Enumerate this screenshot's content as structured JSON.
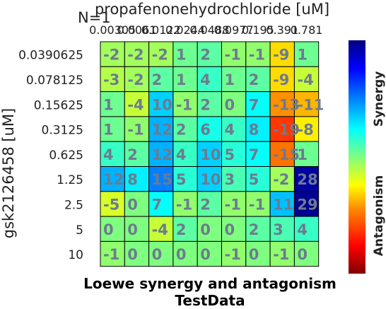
{
  "chart_data": {
    "type": "heatmap",
    "title": "Loewe synergy and antagonism",
    "subtitle": "TestData",
    "top_label": "N=1",
    "xlabel": "propafenonehydrochloride [uM]",
    "ylabel": "gsk2126458 [uM]",
    "x_ticks": [
      "0.00305",
      "0.0061",
      "0.0122",
      "0.0244",
      "0.0488",
      "0.0977",
      "0.195",
      "0.391",
      "0.781"
    ],
    "y_ticks": [
      "0.0390625",
      "0.078125",
      "0.15625",
      "0.3125",
      "0.625",
      "1.25",
      "2.5",
      "5",
      "10"
    ],
    "values": [
      [
        -2,
        -2,
        -2,
        1,
        2,
        -1,
        -1,
        -9,
        1
      ],
      [
        -3,
        -2,
        2,
        1,
        4,
        1,
        2,
        -9,
        -4
      ],
      [
        1,
        -4,
        10,
        -1,
        2,
        0,
        7,
        -13,
        -11
      ],
      [
        1,
        -1,
        12,
        2,
        6,
        4,
        8,
        -19,
        -8
      ],
      [
        4,
        2,
        12,
        4,
        10,
        5,
        7,
        -15,
        1
      ],
      [
        12,
        8,
        15,
        5,
        10,
        3,
        5,
        -2,
        28
      ],
      [
        -5,
        0,
        7,
        -1,
        2,
        -1,
        -1,
        11,
        29
      ],
      [
        0,
        0,
        -4,
        2,
        0,
        0,
        2,
        3,
        4
      ],
      [
        -1,
        0,
        0,
        0,
        0,
        -1,
        0,
        -1,
        0
      ]
    ],
    "color_range": [
      -30,
      30
    ],
    "colorbar": {
      "top_label": "Synergy",
      "bottom_label": "Antagonism"
    },
    "grid": true
  }
}
